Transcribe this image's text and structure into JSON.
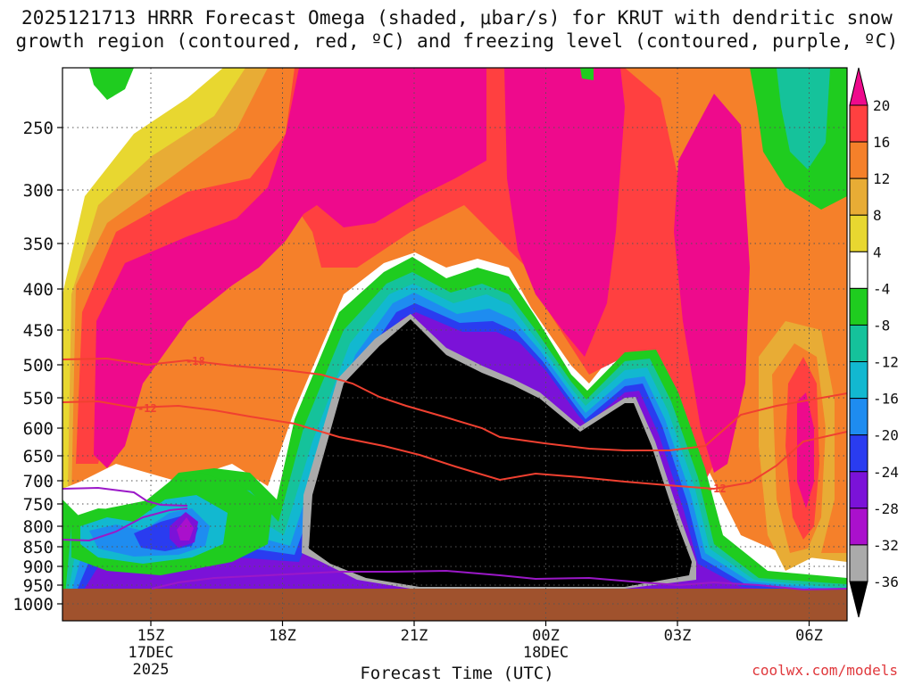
{
  "chart_data": {
    "type": "heatmap",
    "title_line1": "2025121713 HRRR Forecast Omega (shaded, μbar/s) for KRUT with dendritic snow",
    "title_line2": "growth region (contoured, red, ºC) and freezing level (contoured, purple, ºC)",
    "xlabel": "Forecast Time (UTC)",
    "ylabel": "",
    "x_hours": [
      13,
      20
    ],
    "x_ticks": [
      {
        "hour": 15,
        "label": "15Z",
        "date": "17DEC",
        "year": "2025"
      },
      {
        "hour": 18,
        "label": "18Z",
        "date": "",
        "year": ""
      },
      {
        "hour": 21,
        "label": "21Z",
        "date": "",
        "year": ""
      },
      {
        "hour": 24,
        "label": "00Z",
        "date": "18DEC",
        "year": ""
      },
      {
        "hour": 27,
        "label": "03Z",
        "date": "",
        "year": ""
      },
      {
        "hour": 30,
        "label": "06Z",
        "date": "",
        "year": ""
      }
    ],
    "y_ticks_hPa": [
      250,
      300,
      350,
      400,
      450,
      500,
      550,
      600,
      650,
      700,
      750,
      800,
      850,
      900,
      950,
      1000
    ],
    "ylim_hPa": [
      200,
      1025
    ],
    "colorbar": {
      "units": "μbar/s",
      "labels": [
        "20",
        "16",
        "12",
        "8",
        "4",
        "-4",
        "-8",
        "-12",
        "-16",
        "-20",
        "-24",
        "-28",
        "-32",
        "-36"
      ],
      "colors": [
        "#ee0a8c",
        "#ff4040",
        "#f5802a",
        "#e8ac35",
        "#e8d730",
        "#ffffff",
        "#1fcc1f",
        "#15c29b",
        "#12b8d0",
        "#1e8cf0",
        "#2a3cf0",
        "#7b12d8",
        "#aa10cc",
        "#aaaaaa",
        "#000000"
      ]
    },
    "contours": [
      {
        "name": "dendritic-snow -18C",
        "label": "-18",
        "color": "#f04030"
      },
      {
        "name": "dendritic-snow -12C",
        "label": "-12",
        "color": "#f04030"
      },
      {
        "name": "freezing-level 0C",
        "label": "",
        "color": "#9b18c8"
      }
    ],
    "credit": "coolwx.com/models"
  }
}
